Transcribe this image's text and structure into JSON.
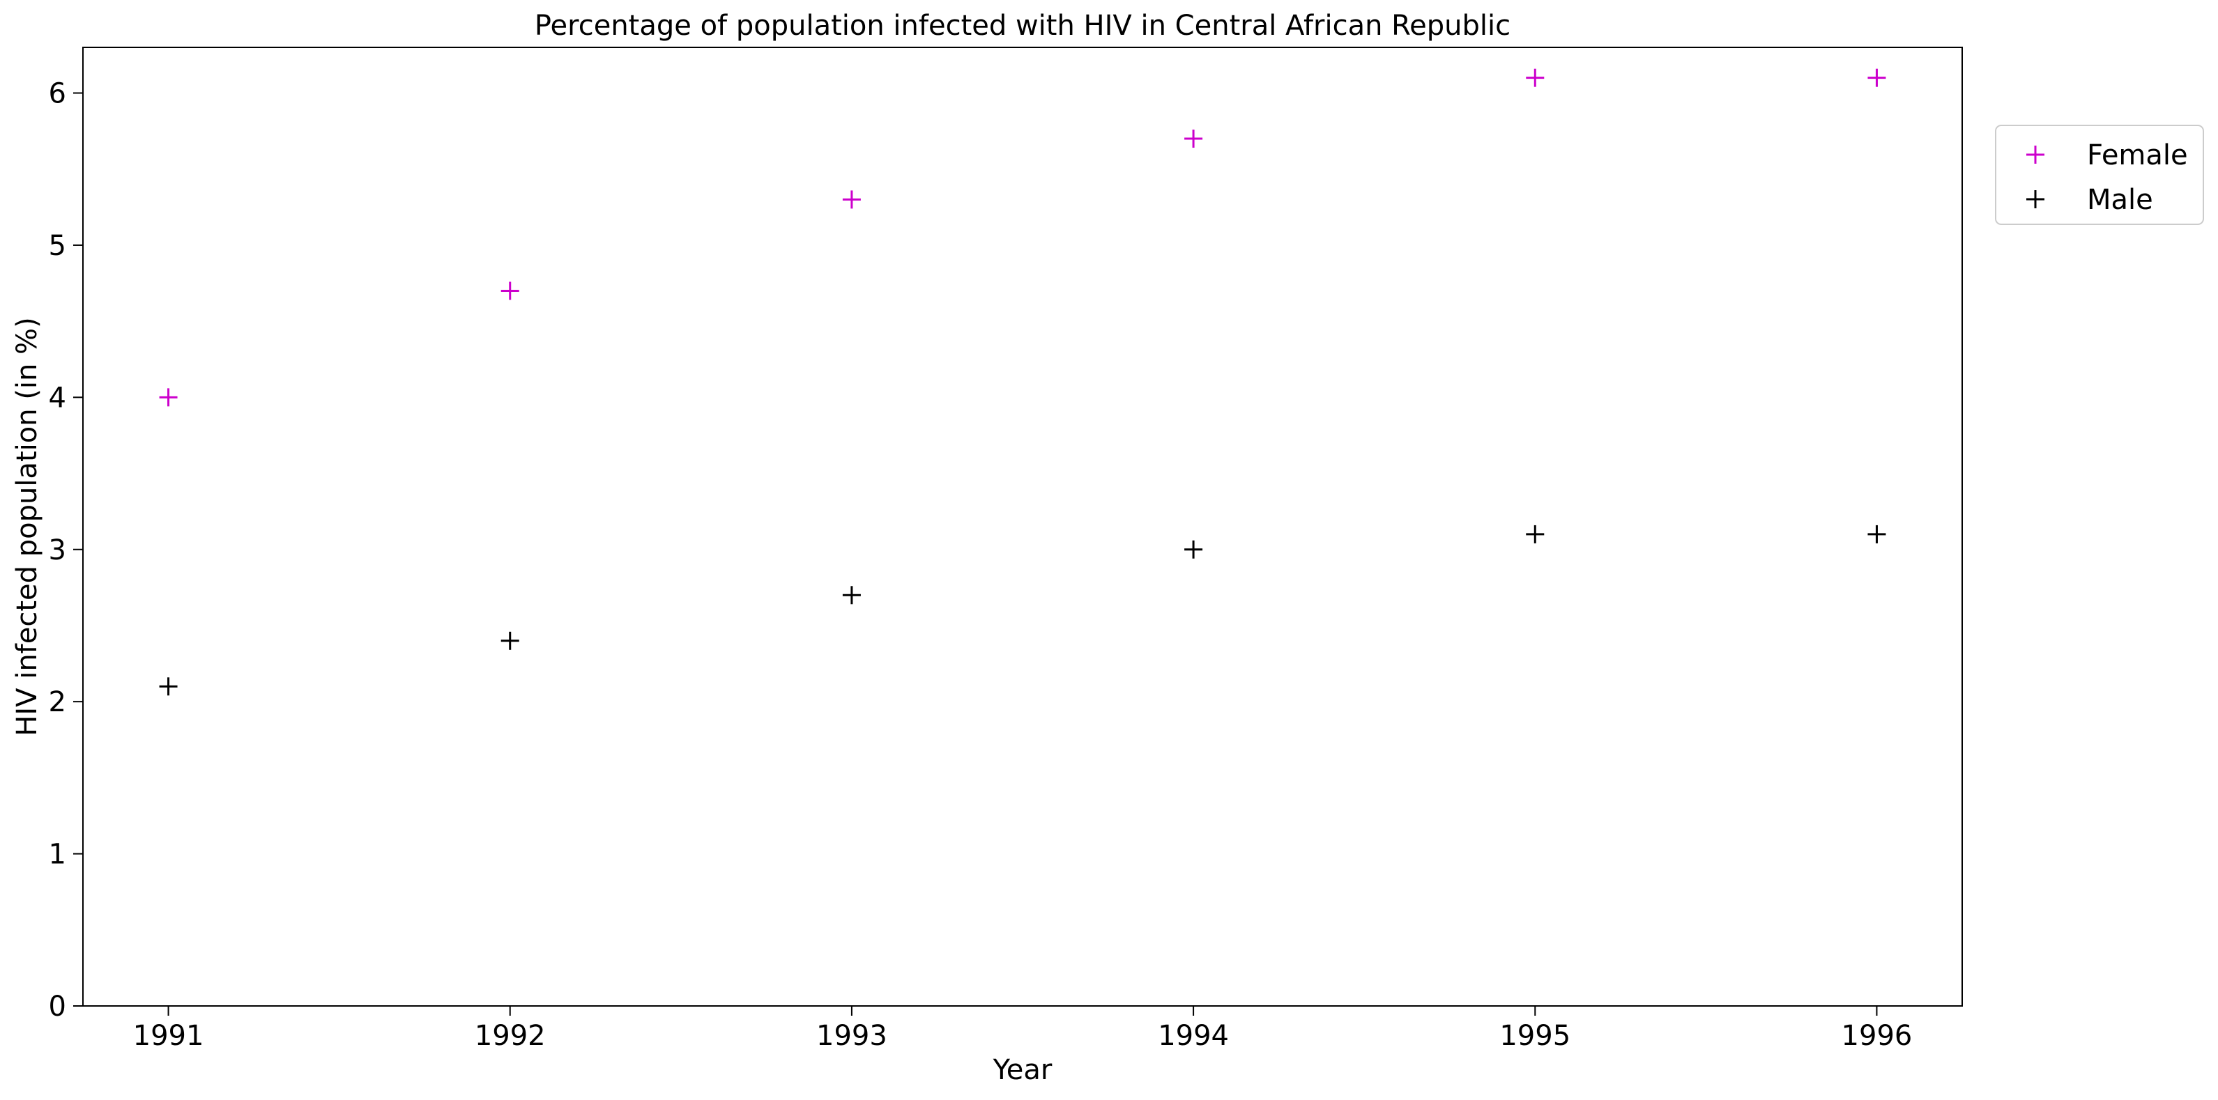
{
  "chart_data": {
    "type": "scatter",
    "title": "Percentage of population infected with HIV in Central African Republic",
    "xlabel": "Year",
    "ylabel": "HIV infected population (in %)",
    "x": [
      1991,
      1992,
      1993,
      1994,
      1995,
      1996
    ],
    "x_tick_labels": [
      "1991",
      "1992",
      "1993",
      "1994",
      "1995",
      "1996"
    ],
    "xlim": [
      1990.75,
      1996.25
    ],
    "ylim": [
      0,
      6.3
    ],
    "y_ticks": [
      0,
      1,
      2,
      3,
      4,
      5,
      6
    ],
    "y_tick_labels": [
      "0",
      "1",
      "2",
      "3",
      "4",
      "5",
      "6"
    ],
    "grid": false,
    "marker": "+",
    "legend_placement": "outside-top-right",
    "series": [
      {
        "name": "Female",
        "color": "#cc00cc",
        "values": [
          4.0,
          4.7,
          5.3,
          5.7,
          6.1,
          6.1
        ]
      },
      {
        "name": "Male",
        "color": "#000000",
        "values": [
          2.1,
          2.4,
          2.7,
          3.0,
          3.1,
          3.1
        ]
      }
    ]
  }
}
